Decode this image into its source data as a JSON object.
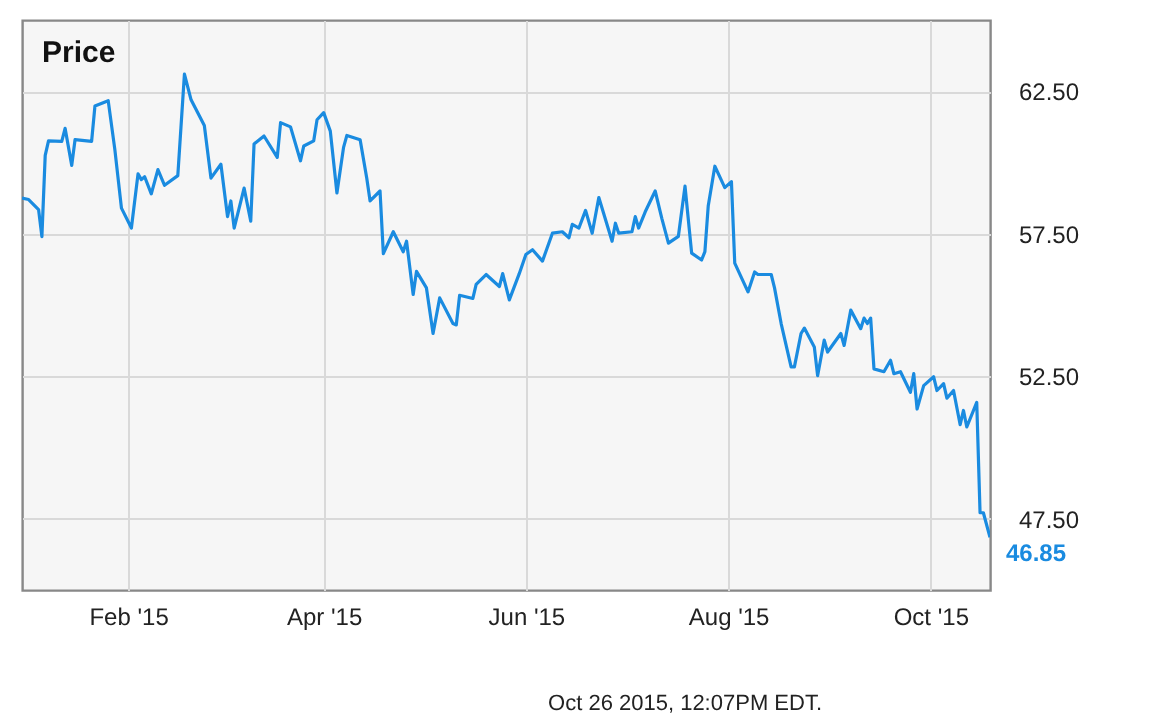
{
  "chart_data": {
    "type": "line",
    "title": "Price",
    "x": [
      "2014-12-31",
      "2015-01-02",
      "2015-01-05",
      "2015-01-06",
      "2015-01-07",
      "2015-01-08",
      "2015-01-12",
      "2015-01-13",
      "2015-01-15",
      "2015-01-16",
      "2015-01-21",
      "2015-01-22",
      "2015-01-26",
      "2015-01-28",
      "2015-01-30",
      "2015-02-02",
      "2015-02-04",
      "2015-02-05",
      "2015-02-06",
      "2015-02-08",
      "2015-02-10",
      "2015-02-12",
      "2015-02-16",
      "2015-02-18",
      "2015-02-20",
      "2015-02-24",
      "2015-02-26",
      "2015-03-01",
      "2015-03-03",
      "2015-03-04",
      "2015-03-05",
      "2015-03-08",
      "2015-03-10",
      "2015-03-11",
      "2015-03-14",
      "2015-03-18",
      "2015-03-19",
      "2015-03-22",
      "2015-03-25",
      "2015-03-26",
      "2015-03-29",
      "2015-03-30",
      "2015-04-01",
      "2015-04-03",
      "2015-04-05",
      "2015-04-07",
      "2015-04-08",
      "2015-04-12",
      "2015-04-14",
      "2015-04-15",
      "2015-04-18",
      "2015-04-19",
      "2015-04-22",
      "2015-04-25",
      "2015-04-26",
      "2015-04-28",
      "2015-04-29",
      "2015-05-02",
      "2015-05-04",
      "2015-05-06",
      "2015-05-10",
      "2015-05-11",
      "2015-05-12",
      "2015-05-16",
      "2015-05-17",
      "2015-05-20",
      "2015-05-24",
      "2015-05-25",
      "2015-05-27",
      "2015-05-30",
      "2015-06-01",
      "2015-06-03",
      "2015-06-06",
      "2015-06-09",
      "2015-06-12",
      "2015-06-14",
      "2015-06-15",
      "2015-06-17",
      "2015-06-19",
      "2015-06-21",
      "2015-06-23",
      "2015-06-27",
      "2015-06-28",
      "2015-06-29",
      "2015-07-03",
      "2015-07-04",
      "2015-07-05",
      "2015-07-07",
      "2015-07-10",
      "2015-07-12",
      "2015-07-14",
      "2015-07-17",
      "2015-07-19",
      "2015-07-21",
      "2015-07-24",
      "2015-07-25",
      "2015-07-26",
      "2015-07-28",
      "2015-07-31",
      "2015-08-02",
      "2015-08-03",
      "2015-08-07",
      "2015-08-09",
      "2015-08-10",
      "2015-08-14",
      "2015-08-15",
      "2015-08-17",
      "2015-08-20",
      "2015-08-21",
      "2015-08-23",
      "2015-08-24",
      "2015-08-27",
      "2015-08-28",
      "2015-08-30",
      "2015-08-31",
      "2015-09-04",
      "2015-09-05",
      "2015-09-07",
      "2015-09-10",
      "2015-09-11",
      "2015-09-12",
      "2015-09-13",
      "2015-09-14",
      "2015-09-17",
      "2015-09-19",
      "2015-09-20",
      "2015-09-22",
      "2015-09-25",
      "2015-09-26",
      "2015-09-27",
      "2015-09-29",
      "2015-10-02",
      "2015-10-03",
      "2015-10-05",
      "2015-10-06",
      "2015-10-08",
      "2015-10-10",
      "2015-10-11",
      "2015-10-12",
      "2015-10-15",
      "2015-10-16",
      "2015-10-17",
      "2015-10-19"
    ],
    "series": [
      {
        "color": "#1a8be0",
        "values": [
          58.75,
          58.7,
          58.35,
          57.4,
          60.25,
          60.76,
          60.74,
          61.2,
          59.9,
          60.8,
          60.74,
          61.98,
          62.17,
          60.46,
          58.4,
          57.7,
          59.6,
          59.4,
          59.5,
          58.9,
          59.75,
          59.2,
          59.54,
          63.1,
          62.2,
          61.3,
          59.45,
          59.94,
          58.1,
          58.65,
          57.7,
          59.1,
          57.94,
          60.65,
          60.93,
          60.18,
          61.4,
          61.25,
          60.06,
          60.58,
          60.76,
          61.5,
          61.75,
          61.1,
          58.93,
          60.53,
          60.95,
          60.8,
          59.45,
          58.65,
          59.0,
          56.8,
          57.57,
          56.87,
          57.24,
          55.37,
          56.18,
          55.6,
          54.0,
          55.25,
          54.35,
          54.3,
          55.34,
          55.23,
          55.72,
          56.07,
          55.65,
          56.1,
          55.18,
          56.1,
          56.77,
          56.94,
          56.54,
          57.52,
          57.57,
          57.36,
          57.83,
          57.7,
          58.32,
          57.52,
          58.77,
          57.24,
          57.87,
          57.52,
          57.57,
          58.1,
          57.7,
          58.27,
          59.0,
          58.04,
          57.17,
          57.41,
          59.17,
          56.82,
          56.58,
          56.87,
          58.47,
          59.87,
          59.12,
          59.33,
          56.47,
          55.46,
          56.16,
          56.07,
          56.07,
          55.6,
          54.35,
          52.83,
          52.83,
          54.0,
          54.19,
          53.53,
          52.52,
          53.77,
          53.35,
          54.0,
          53.58,
          54.82,
          54.17,
          54.54,
          54.35,
          54.54,
          52.76,
          52.66,
          53.06,
          52.59,
          52.66,
          51.94,
          52.59,
          51.35,
          52.17,
          52.48,
          52.0,
          52.24,
          51.73,
          52.0,
          50.8,
          51.3,
          50.72,
          51.58,
          47.71,
          47.71,
          46.85
        ]
      }
    ],
    "xlim": [
      "2014-12-31",
      "2015-10-19"
    ],
    "xticks": [
      {
        "value": "2015-02-01",
        "label": "Feb '15"
      },
      {
        "value": "2015-04-01",
        "label": "Apr '15"
      },
      {
        "value": "2015-06-01",
        "label": "Jun '15"
      },
      {
        "value": "2015-08-01",
        "label": "Aug '15"
      },
      {
        "value": "2015-10-01",
        "label": "Oct '15"
      }
    ],
    "ylim": [
      45,
      65
    ],
    "yticks": [
      {
        "value": 47.5,
        "label": "47.50"
      },
      {
        "value": 52.5,
        "label": "52.50"
      },
      {
        "value": 57.5,
        "label": "57.50"
      },
      {
        "value": 62.5,
        "label": "62.50"
      }
    ],
    "grid": true,
    "annotations": [
      {
        "text": "46.85",
        "x": "2015-10-19",
        "y": 46.85
      },
      "Oct 26 2015, 12:07PM EDT."
    ]
  }
}
